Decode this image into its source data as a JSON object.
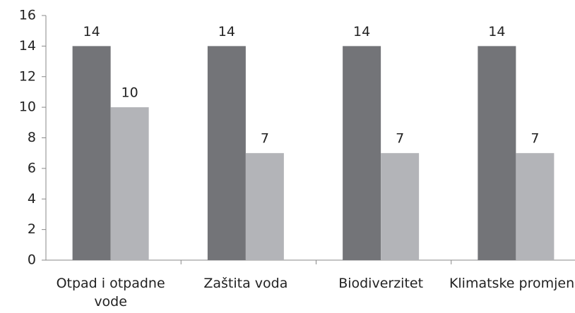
{
  "chart_data": {
    "type": "bar",
    "categories": [
      "Otpad i otpadne vode",
      "Zaštita voda",
      "Biodiverzitet",
      "Klimatske promjene"
    ],
    "series": [
      {
        "color": "#737478",
        "values": [
          14,
          14,
          14,
          14
        ]
      },
      {
        "color": "#b3b4b8",
        "values": [
          10,
          7,
          7,
          7
        ]
      }
    ],
    "ylim": [
      0,
      16
    ],
    "yticks": [
      0,
      2,
      4,
      6,
      8,
      10,
      12,
      14,
      16
    ],
    "grid": false
  }
}
